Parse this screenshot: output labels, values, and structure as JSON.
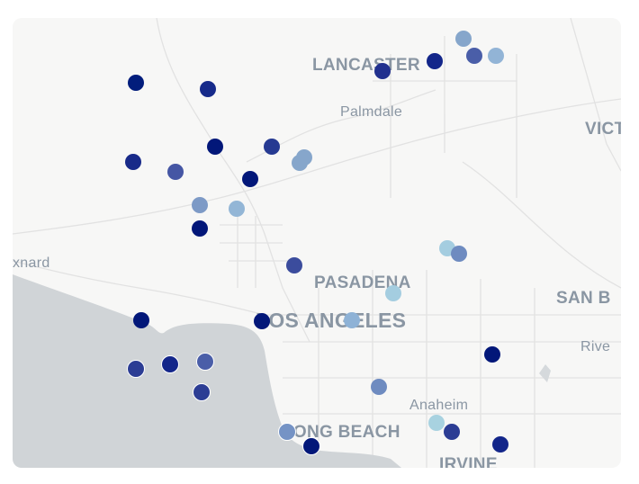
{
  "map": {
    "labels": {
      "lancaster": "LANCASTER",
      "palmdale": "Palmdale",
      "victorville": "VICT",
      "oxnard": "xnard",
      "pasadena": "PASADENA",
      "los_angeles": "LOS ANGELES",
      "san_bernardino": "SAN B",
      "riverside": "Rive",
      "anaheim": "Anaheim",
      "long_beach": "LONG BEACH",
      "irvine": "IRVINE"
    },
    "colors": {
      "land": "#f7f7f6",
      "water": "#d0d4d7",
      "road": "#e4e4e4",
      "label": "#8a96a3"
    },
    "markers": [
      {
        "color": "#021d7c"
      },
      {
        "color": "#162a8a"
      },
      {
        "color": "#22318f"
      },
      {
        "color": "#13268a"
      },
      {
        "color": "#86a6cb"
      },
      {
        "color": "#4a5ea8"
      },
      {
        "color": "#92b4d6"
      },
      {
        "color": "#021779"
      },
      {
        "color": "#263a92"
      },
      {
        "color": "#86a6cb"
      },
      {
        "color": "#86a6cb"
      },
      {
        "color": "#182a89"
      },
      {
        "color": "#4556a4"
      },
      {
        "color": "#021779"
      },
      {
        "color": "#7d9ac6"
      },
      {
        "color": "#93b6d6"
      },
      {
        "color": "#021779"
      },
      {
        "color": "#a4cde0"
      },
      {
        "color": "#6e8bc0"
      },
      {
        "color": "#3b4c9d"
      },
      {
        "color": "#a4cde0"
      },
      {
        "color": "#021779"
      },
      {
        "color": "#021779"
      },
      {
        "color": "#8eb2d6"
      },
      {
        "color": "#021779"
      },
      {
        "color": "#2c3d94"
      },
      {
        "color": "#13268a"
      },
      {
        "color": "#4a5ea8"
      },
      {
        "color": "#2c3d94"
      },
      {
        "color": "#6e8bc0"
      },
      {
        "color": "#a8d2e0"
      },
      {
        "color": "#2c3d94"
      },
      {
        "color": "#7593c5"
      },
      {
        "color": "#021779"
      },
      {
        "color": "#13268a"
      }
    ]
  }
}
